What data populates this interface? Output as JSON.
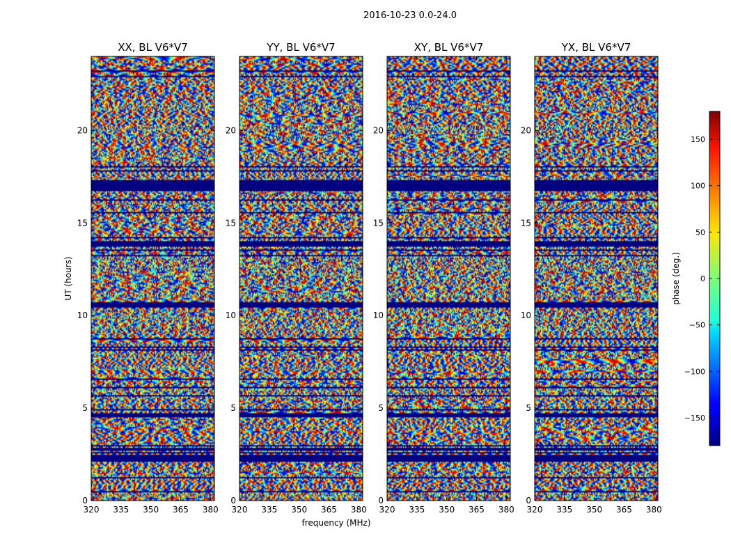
{
  "figure": {
    "suptitle": "2016-10-23 0.0-24.0",
    "xlabel": "frequency (MHz)",
    "ylabel": "UT (hours)"
  },
  "chart_data": {
    "type": "heatmap",
    "colormap": "jet",
    "xlim": [
      320,
      382
    ],
    "ylim": [
      0,
      24
    ],
    "xticks": [
      320,
      335,
      350,
      365,
      380
    ],
    "yticks": [
      0,
      5,
      10,
      15,
      20
    ],
    "panels": [
      {
        "title": "XX, BL V6*V7"
      },
      {
        "title": "YY, BL V6*V7"
      },
      {
        "title": "XY, BL V6*V7"
      },
      {
        "title": "YX, BL V6*V7"
      }
    ],
    "colorbar": {
      "label": "phase (deg.)",
      "range": [
        -180,
        180
      ],
      "ticks": [
        150,
        100,
        50,
        0,
        -50,
        -100,
        -150
      ],
      "tick_labels": [
        "150",
        "100",
        "50",
        "0",
        "−50",
        "−100",
        "−150"
      ]
    },
    "flagged_bands_hours": [
      [
        16.8,
        17.3
      ],
      [
        10.4,
        10.7
      ],
      [
        2.1,
        2.4
      ],
      [
        4.5,
        4.7
      ],
      [
        13.8,
        14.0
      ]
    ]
  }
}
